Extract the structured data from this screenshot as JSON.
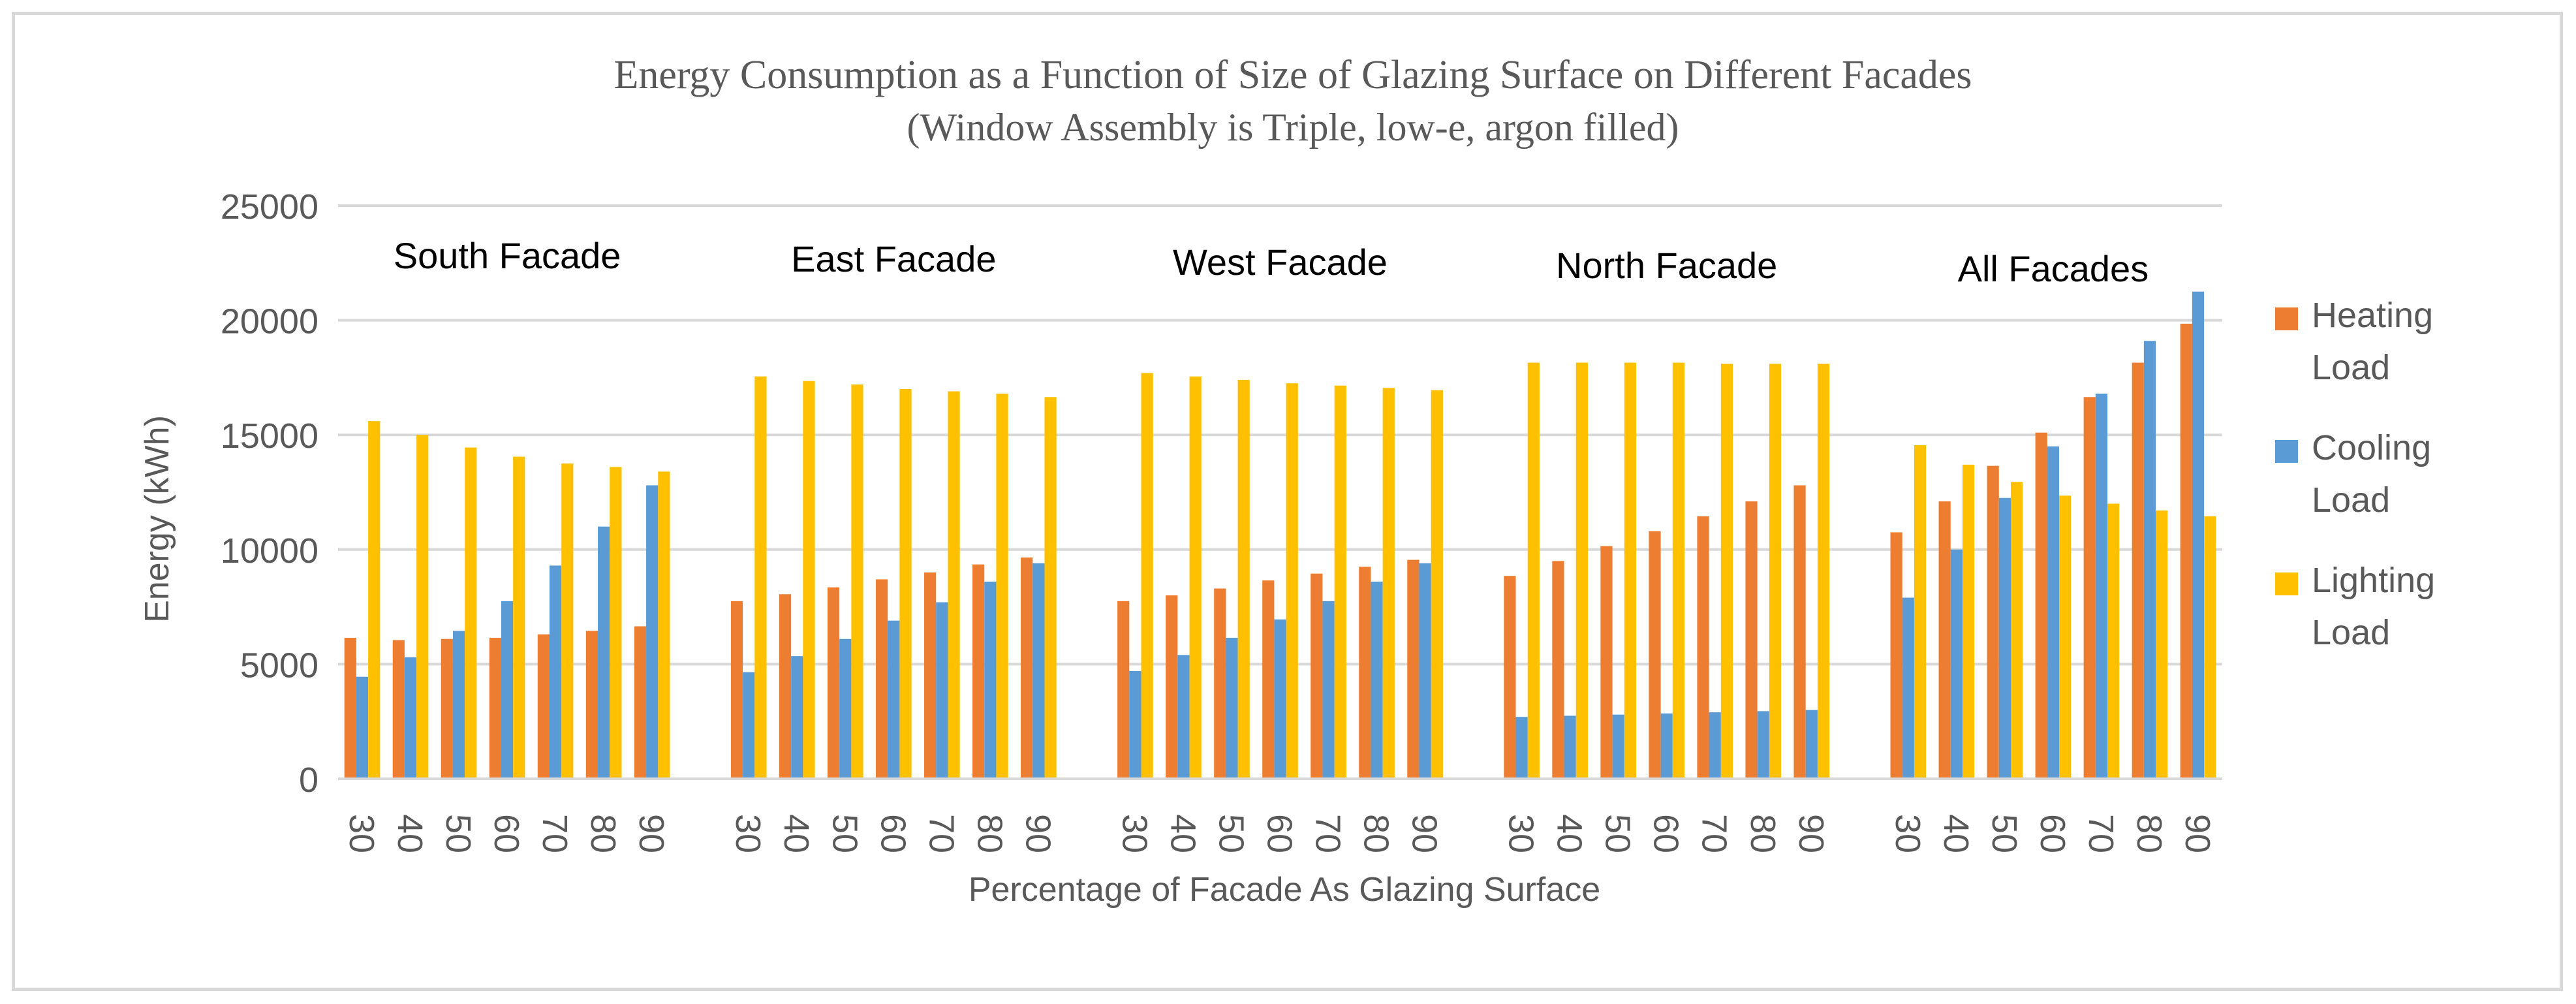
{
  "chart_data": {
    "type": "bar",
    "title": "Energy Consumption as a Function of Size of Glazing Surface on Different Facades",
    "subtitle": "(Window Assembly is Triple, low-e, argon filled)",
    "xlabel": "Percentage of Facade As Glazing Surface",
    "ylabel": "Energy (kWh)",
    "ylim": [
      0,
      25000
    ],
    "yticks": [
      "0",
      "5000",
      "10000",
      "15000",
      "20000",
      "25000"
    ],
    "grid": true,
    "legend_position": "right",
    "colors": {
      "heating": "#ed7d31",
      "cooling": "#5b9bd5",
      "lighting": "#ffc000",
      "grid": "#d9d9d9",
      "text": "#595959"
    },
    "legend": [
      {
        "key": "heating",
        "lines": [
          "Heating",
          "Load"
        ]
      },
      {
        "key": "cooling",
        "lines": [
          "Cooling",
          "Load"
        ]
      },
      {
        "key": "lighting",
        "lines": [
          "Lighting",
          "Load"
        ]
      }
    ],
    "groups": [
      {
        "name": "South Facade",
        "categories": [
          "30",
          "40",
          "50",
          "60",
          "70",
          "80",
          "90"
        ],
        "series": [
          {
            "name": "Heating Load",
            "key": "heating",
            "values": [
              6150,
              6050,
              6100,
              6150,
              6300,
              6450,
              6650
            ]
          },
          {
            "name": "Cooling Load",
            "key": "cooling",
            "values": [
              4450,
              5300,
              6450,
              7750,
              9300,
              11000,
              12800
            ]
          },
          {
            "name": "Lighting Load",
            "key": "lighting",
            "values": [
              15600,
              15000,
              14450,
              14050,
              13750,
              13600,
              13400
            ]
          }
        ]
      },
      {
        "name": "East Facade",
        "categories": [
          "30",
          "40",
          "50",
          "60",
          "70",
          "80",
          "90"
        ],
        "series": [
          {
            "name": "Heating Load",
            "key": "heating",
            "values": [
              7750,
              8050,
              8350,
              8700,
              9000,
              9350,
              9650
            ]
          },
          {
            "name": "Cooling Load",
            "key": "cooling",
            "values": [
              4650,
              5350,
              6100,
              6900,
              7700,
              8600,
              9400
            ]
          },
          {
            "name": "Lighting Load",
            "key": "lighting",
            "values": [
              17550,
              17350,
              17200,
              17000,
              16900,
              16800,
              16650
            ]
          }
        ]
      },
      {
        "name": "West Facade",
        "categories": [
          "30",
          "40",
          "50",
          "60",
          "70",
          "80",
          "90"
        ],
        "series": [
          {
            "name": "Heating Load",
            "key": "heating",
            "values": [
              7750,
              8000,
              8300,
              8650,
              8950,
              9250,
              9550
            ]
          },
          {
            "name": "Cooling Load",
            "key": "cooling",
            "values": [
              4700,
              5400,
              6150,
              6950,
              7750,
              8600,
              9400
            ]
          },
          {
            "name": "Lighting Load",
            "key": "lighting",
            "values": [
              17700,
              17550,
              17400,
              17250,
              17150,
              17050,
              16950
            ]
          }
        ]
      },
      {
        "name": "North Facade",
        "categories": [
          "30",
          "40",
          "50",
          "60",
          "70",
          "80",
          "90"
        ],
        "series": [
          {
            "name": "Heating Load",
            "key": "heating",
            "values": [
              8850,
              9500,
              10150,
              10800,
              11450,
              12100,
              12800
            ]
          },
          {
            "name": "Cooling Load",
            "key": "cooling",
            "values": [
              2700,
              2750,
              2800,
              2850,
              2900,
              2950,
              3000
            ]
          },
          {
            "name": "Lighting Load",
            "key": "lighting",
            "values": [
              18150,
              18150,
              18150,
              18150,
              18100,
              18100,
              18100
            ]
          }
        ]
      },
      {
        "name": "All Facades",
        "categories": [
          "30",
          "40",
          "50",
          "60",
          "70",
          "80",
          "90"
        ],
        "series": [
          {
            "name": "Heating Load",
            "key": "heating",
            "values": [
              10750,
              12100,
              13650,
              15100,
              16650,
              18150,
              19850
            ]
          },
          {
            "name": "Cooling Load",
            "key": "cooling",
            "values": [
              7900,
              10000,
              12250,
              14500,
              16800,
              19100,
              21250
            ]
          },
          {
            "name": "Lighting Load",
            "key": "lighting",
            "values": [
              14550,
              13700,
              12950,
              12350,
              12000,
              11700,
              11450
            ]
          }
        ]
      }
    ]
  }
}
